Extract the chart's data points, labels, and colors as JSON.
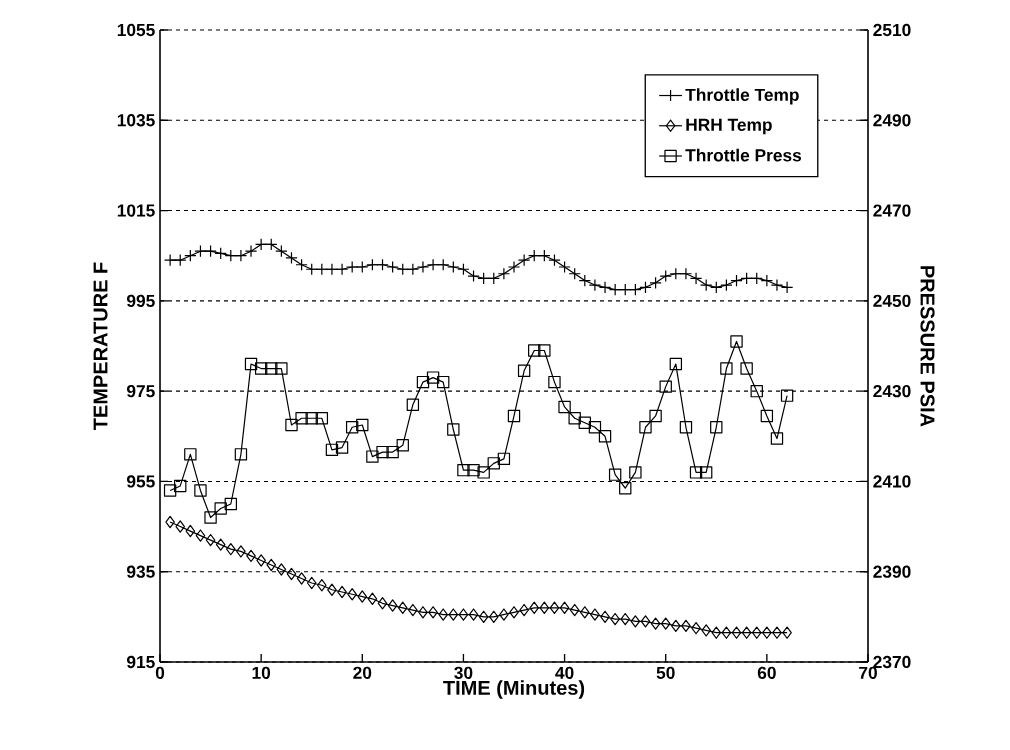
{
  "chart_data": {
    "type": "line",
    "xlabel": "TIME (Minutes)",
    "ylabel": "TEMPERATURE F",
    "y2label": "PRESSURE PSIA",
    "x": [
      1,
      2,
      3,
      4,
      5,
      6,
      7,
      8,
      9,
      10,
      11,
      12,
      13,
      14,
      15,
      16,
      17,
      18,
      19,
      20,
      21,
      22,
      23,
      24,
      25,
      26,
      27,
      28,
      29,
      30,
      31,
      32,
      33,
      34,
      35,
      36,
      37,
      38,
      39,
      40,
      41,
      42,
      43,
      44,
      45,
      46,
      47,
      48,
      49,
      50,
      51,
      52,
      53,
      54,
      55,
      56,
      57,
      58,
      59,
      60,
      61,
      62
    ],
    "series": [
      {
        "name": "Throttle Temp",
        "color": "#000000",
        "marker": "cross",
        "values": [
          1004,
          1004,
          1005,
          1006,
          1006,
          1005.5,
          1005,
          1005,
          1006,
          1007.5,
          1007.5,
          1006,
          1004.5,
          1003,
          1002,
          1002,
          1002,
          1002,
          1002.5,
          1002.5,
          1003,
          1003,
          1002.5,
          1002,
          1002,
          1002.5,
          1003,
          1003,
          1002.5,
          1002,
          1000.5,
          1000,
          1000,
          1001,
          1002.5,
          1004,
          1005,
          1005,
          1004,
          1002.5,
          1001,
          999.5,
          998.5,
          998,
          997.5,
          997.5,
          997.5,
          998,
          999,
          1000.5,
          1001,
          1001,
          1000,
          998.5,
          998,
          998.5,
          999.5,
          1000,
          1000,
          999.5,
          998.5,
          998
        ]
      },
      {
        "name": "HRH Temp",
        "color": "#000000",
        "marker": "diamond",
        "values": [
          946,
          945,
          944,
          943,
          942,
          941,
          940,
          939.5,
          938.5,
          937.5,
          936.5,
          935.5,
          934.5,
          933.5,
          932.5,
          932,
          931,
          930.5,
          930,
          929.5,
          929,
          928,
          927.5,
          927,
          926.5,
          926,
          926,
          925.5,
          925.5,
          925.5,
          925.5,
          925,
          925,
          925.5,
          926,
          926.5,
          927,
          927,
          927,
          927,
          926.5,
          926,
          925.5,
          925,
          924.5,
          924.5,
          924,
          924,
          923.5,
          923.5,
          923,
          923,
          922.5,
          922,
          921.5,
          921.5,
          921.5,
          921.5,
          921.5,
          921.5,
          921.5,
          921.5
        ]
      },
      {
        "name": "Throttle Press",
        "color": "#000000",
        "marker": "square",
        "axis": "y2",
        "values": [
          2408,
          2409,
          2416,
          2408,
          2402,
          2404,
          2405,
          2416,
          2436,
          2435,
          2435,
          2435,
          2422.5,
          2424,
          2424,
          2424,
          2417,
          2417.5,
          2422,
          2422.5,
          2415.5,
          2416.5,
          2416.5,
          2418,
          2427,
          2432,
          2433,
          2432,
          2421.5,
          2412.5,
          2412.5,
          2412,
          2414,
          2415,
          2424.5,
          2434.5,
          2439,
          2439,
          2432,
          2426.5,
          2424,
          2423,
          2422,
          2420,
          2411.5,
          2408.5,
          2412,
          2422,
          2424.5,
          2431,
          2436,
          2422,
          2412,
          2412,
          2422,
          2435,
          2441,
          2435,
          2430,
          2424.5,
          2419.5,
          2429
        ]
      }
    ],
    "xlim": [
      0,
      70
    ],
    "xticks": [
      0,
      10,
      20,
      30,
      40,
      50,
      60,
      70
    ],
    "ylim": [
      915,
      1055
    ],
    "yticks": [
      915,
      935,
      955,
      975,
      995,
      1015,
      1035,
      1055
    ],
    "y2lim": [
      2370,
      2510
    ],
    "y2ticks": [
      2370,
      2390,
      2410,
      2430,
      2450,
      2470,
      2490,
      2510
    ],
    "grid": "y",
    "legend": "top right",
    "line_style": "solid"
  }
}
